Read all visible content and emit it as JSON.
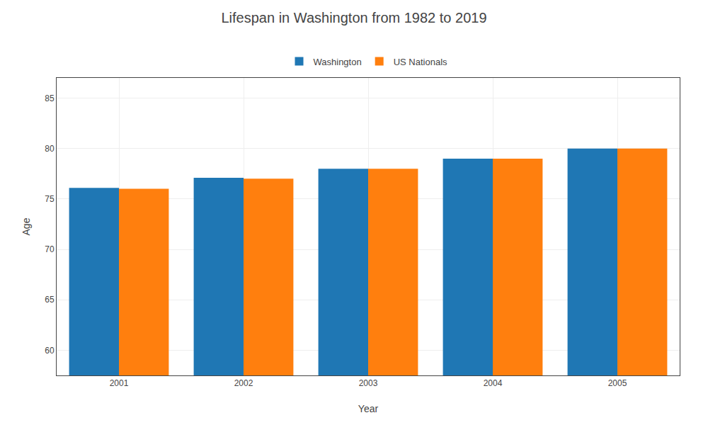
{
  "chart_data": {
    "type": "bar",
    "title": "Lifespan in Washington from 1982 to 2019",
    "xlabel": "Year",
    "ylabel": "Age",
    "categories": [
      "2001",
      "2002",
      "2003",
      "2004",
      "2005"
    ],
    "series": [
      {
        "name": "Washington",
        "values": [
          76.1,
          77.1,
          78.0,
          79.0,
          80.0
        ]
      },
      {
        "name": "US Nationals",
        "values": [
          76.0,
          77.0,
          78.0,
          79.0,
          80.0
        ]
      }
    ],
    "ylim": [
      57.5,
      87
    ],
    "yticks": [
      60,
      65,
      70,
      75,
      80,
      85
    ],
    "grid": true,
    "legend": "upper center"
  }
}
